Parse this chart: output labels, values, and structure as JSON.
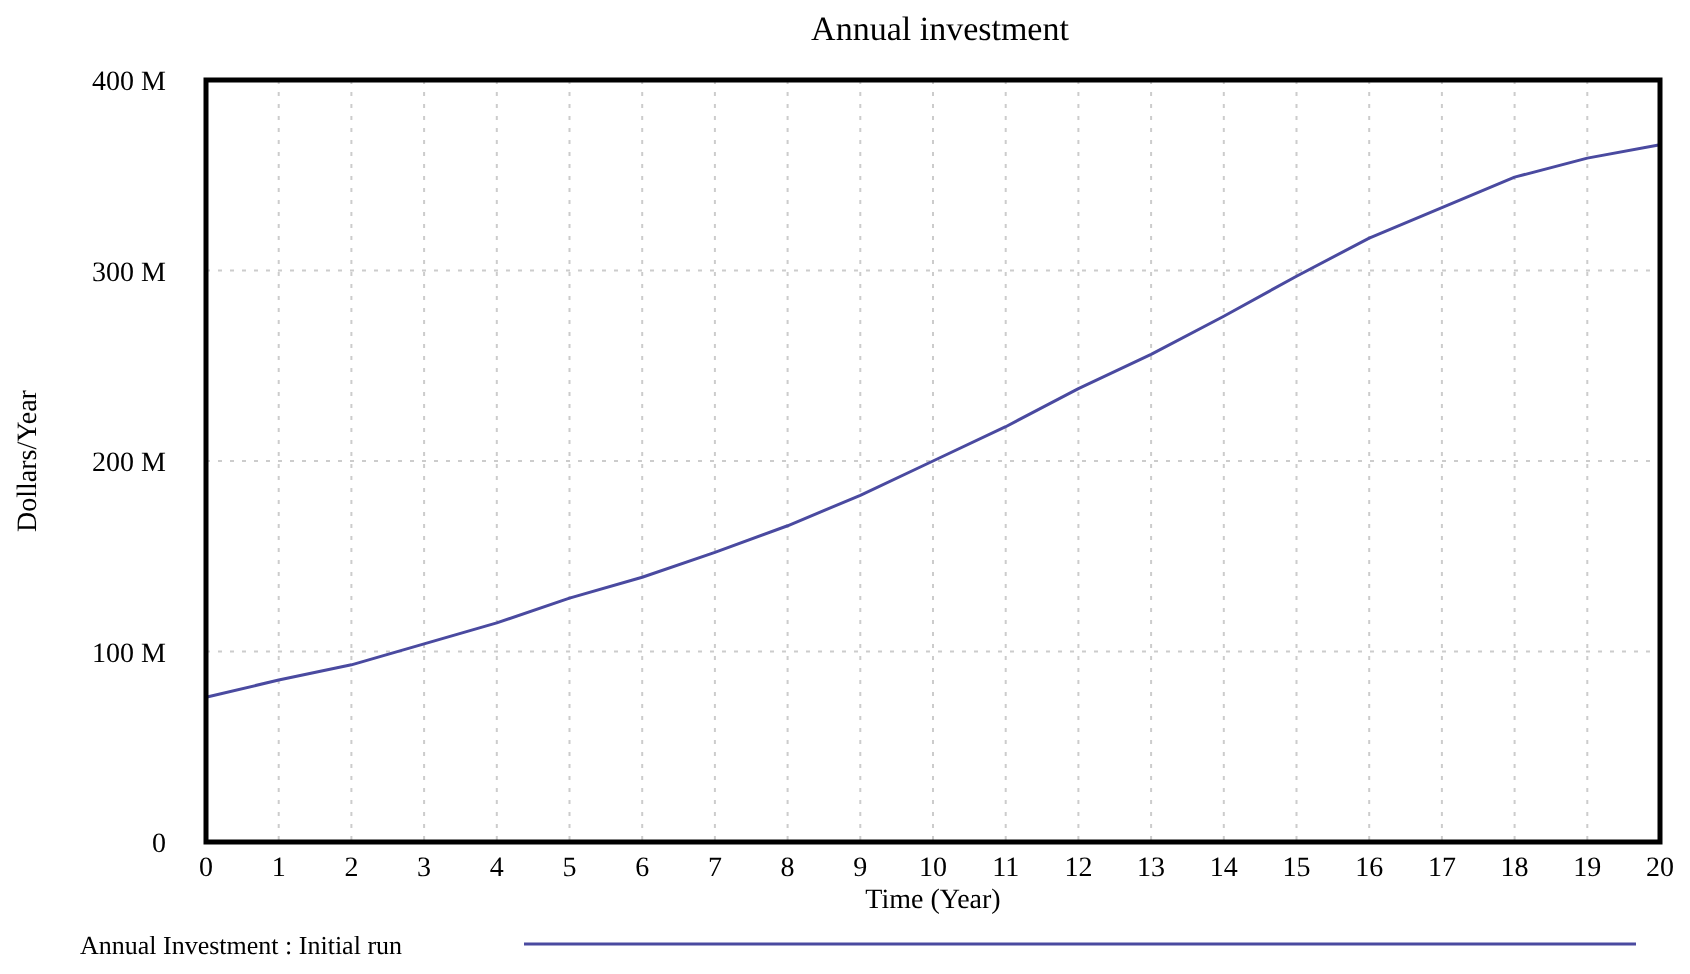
{
  "chart_data": {
    "type": "line",
    "title": "Annual investment",
    "xlabel": "Time (Year)",
    "ylabel": "Dollars/Year",
    "x": [
      0,
      1,
      2,
      3,
      4,
      5,
      6,
      7,
      8,
      9,
      10,
      11,
      12,
      13,
      14,
      15,
      16,
      17,
      18,
      19,
      20
    ],
    "series": [
      {
        "name": "Annual Investment : Initial run",
        "color": "#4a4aa0",
        "values": [
          76000000,
          85000000,
          93000000,
          104000000,
          115000000,
          128000000,
          139000000,
          152000000,
          166000000,
          182000000,
          200000000,
          218000000,
          238000000,
          256000000,
          276000000,
          297000000,
          317000000,
          333000000,
          349000000,
          359000000,
          366000000
        ]
      }
    ],
    "xlim": [
      0,
      20
    ],
    "xticks": [
      0,
      1,
      2,
      3,
      4,
      5,
      6,
      7,
      8,
      9,
      10,
      11,
      12,
      13,
      14,
      15,
      16,
      17,
      18,
      19,
      20
    ],
    "ylim": [
      0,
      400000000
    ],
    "yticks": [
      {
        "value": 0,
        "label": "0"
      },
      {
        "value": 100000000,
        "label": "100 M"
      },
      {
        "value": 200000000,
        "label": "200 M"
      },
      {
        "value": 300000000,
        "label": "300 M"
      },
      {
        "value": 400000000,
        "label": "400 M"
      }
    ],
    "grid": true,
    "legend": "bottom",
    "marker": "none",
    "line_style": "solid"
  }
}
